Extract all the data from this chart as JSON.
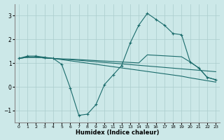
{
  "xlabel": "Humidex (Indice chaleur)",
  "bg_color": "#cce8e8",
  "grid_color": "#aacccc",
  "line_color": "#1a6b6b",
  "xlim": [
    -0.5,
    23.5
  ],
  "ylim": [
    -1.5,
    3.5
  ],
  "yticks": [
    -1,
    0,
    1,
    2,
    3
  ],
  "xticks": [
    0,
    1,
    2,
    3,
    4,
    5,
    6,
    7,
    8,
    9,
    10,
    11,
    12,
    13,
    14,
    15,
    16,
    17,
    18,
    19,
    20,
    21,
    22,
    23
  ],
  "line1_x": [
    0,
    1,
    2,
    3,
    4,
    5,
    6,
    7,
    8,
    9,
    10,
    11,
    12,
    13,
    14,
    15,
    16,
    17,
    18,
    19,
    20,
    21,
    22,
    23
  ],
  "line1_y": [
    1.2,
    1.3,
    1.3,
    1.25,
    1.2,
    0.95,
    -0.05,
    -1.2,
    -1.15,
    -0.75,
    0.1,
    0.5,
    0.9,
    1.85,
    2.6,
    3.1,
    2.85,
    2.6,
    2.25,
    2.2,
    1.05,
    0.8,
    0.4,
    0.3
  ],
  "line2_x": [
    0,
    1,
    2,
    3,
    4,
    5,
    6,
    7,
    8,
    9,
    10,
    11,
    12,
    13,
    14,
    15,
    16,
    17,
    18,
    19,
    20,
    21,
    22,
    23
  ],
  "line2_y": [
    1.2,
    1.25,
    1.25,
    1.22,
    1.2,
    1.15,
    1.1,
    1.05,
    1.0,
    0.95,
    0.9,
    0.85,
    0.8,
    0.75,
    0.7,
    0.65,
    0.6,
    0.55,
    0.5,
    0.45,
    0.38,
    0.32,
    0.26,
    0.2
  ],
  "line3_x": [
    0,
    1,
    2,
    3,
    4,
    5,
    6,
    7,
    8,
    9,
    10,
    11,
    12,
    13,
    14,
    15,
    16,
    17,
    18,
    19,
    20,
    21,
    22,
    23
  ],
  "line3_y": [
    1.2,
    1.25,
    1.25,
    1.22,
    1.2,
    1.17,
    1.15,
    1.12,
    1.09,
    1.06,
    1.03,
    1.0,
    0.97,
    0.94,
    0.91,
    0.88,
    0.85,
    0.82,
    0.79,
    0.76,
    0.73,
    0.7,
    0.67,
    0.64
  ],
  "line4_x": [
    0,
    1,
    2,
    3,
    4,
    5,
    6,
    7,
    8,
    9,
    10,
    11,
    12,
    13,
    14,
    15,
    16,
    17,
    18,
    19,
    20,
    21,
    22,
    23
  ],
  "line4_y": [
    1.2,
    1.25,
    1.25,
    1.22,
    1.2,
    1.18,
    1.17,
    1.15,
    1.13,
    1.11,
    1.09,
    1.07,
    1.05,
    1.03,
    1.01,
    1.35,
    1.33,
    1.31,
    1.29,
    1.27,
    1.05,
    0.8,
    0.4,
    0.3
  ]
}
